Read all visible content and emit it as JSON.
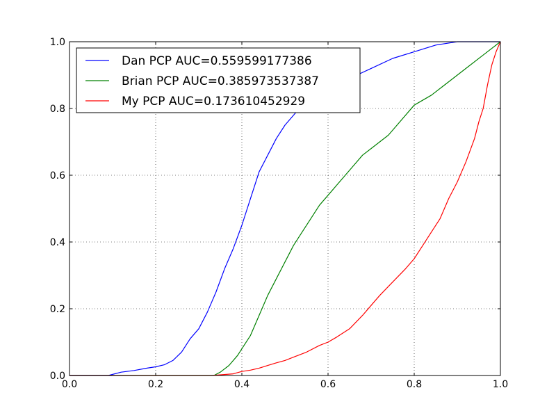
{
  "chart_data": {
    "type": "line",
    "title": "",
    "xlabel": "",
    "ylabel": "",
    "xlim": [
      0.0,
      1.0
    ],
    "ylim": [
      0.0,
      1.0
    ],
    "grid": true,
    "legend_position": "upper left",
    "x_ticks": [
      "0.0",
      "0.2",
      "0.4",
      "0.6",
      "0.8",
      "1.0"
    ],
    "y_ticks": [
      "0.0",
      "0.2",
      "0.4",
      "0.6",
      "0.8",
      "1.0"
    ],
    "series": [
      {
        "name": "Dan PCP AUC=0.559599177386",
        "color": "#0000ff",
        "x": [
          0.0,
          0.05,
          0.09,
          0.12,
          0.15,
          0.18,
          0.2,
          0.22,
          0.24,
          0.26,
          0.28,
          0.3,
          0.32,
          0.34,
          0.36,
          0.38,
          0.4,
          0.42,
          0.44,
          0.46,
          0.48,
          0.5,
          0.52,
          0.54,
          0.56,
          0.6,
          0.65,
          0.7,
          0.75,
          0.8,
          0.85,
          0.9,
          1.0
        ],
        "y": [
          0.0,
          0.0,
          0.0,
          0.01,
          0.015,
          0.022,
          0.026,
          0.032,
          0.045,
          0.07,
          0.11,
          0.14,
          0.19,
          0.25,
          0.32,
          0.38,
          0.45,
          0.53,
          0.61,
          0.66,
          0.71,
          0.75,
          0.78,
          0.81,
          0.83,
          0.86,
          0.89,
          0.92,
          0.95,
          0.97,
          0.99,
          1.0,
          1.0
        ]
      },
      {
        "name": "Brian PCP AUC=0.385973537387",
        "color": "#008000",
        "x": [
          0.0,
          0.3,
          0.335,
          0.35,
          0.37,
          0.39,
          0.4,
          0.42,
          0.44,
          0.46,
          0.48,
          0.5,
          0.52,
          0.54,
          0.56,
          0.58,
          0.6,
          0.62,
          0.64,
          0.66,
          0.68,
          0.7,
          0.72,
          0.74,
          0.76,
          0.8,
          0.84,
          0.88,
          0.92,
          0.96,
          1.0
        ],
        "y": [
          0.0,
          0.0,
          0.0,
          0.01,
          0.03,
          0.06,
          0.08,
          0.12,
          0.18,
          0.24,
          0.29,
          0.34,
          0.39,
          0.43,
          0.47,
          0.51,
          0.54,
          0.57,
          0.6,
          0.63,
          0.66,
          0.68,
          0.7,
          0.72,
          0.75,
          0.81,
          0.84,
          0.88,
          0.92,
          0.96,
          1.0
        ]
      },
      {
        "name": "My PCP AUC=0.173610452929",
        "color": "#ff0000",
        "x": [
          0.0,
          0.33,
          0.38,
          0.4,
          0.42,
          0.44,
          0.46,
          0.48,
          0.5,
          0.52,
          0.55,
          0.58,
          0.6,
          0.62,
          0.65,
          0.68,
          0.7,
          0.72,
          0.75,
          0.78,
          0.8,
          0.82,
          0.84,
          0.86,
          0.88,
          0.9,
          0.92,
          0.94,
          0.95,
          0.96,
          0.97,
          0.98,
          0.99,
          1.0
        ],
        "y": [
          0.0,
          0.0,
          0.005,
          0.012,
          0.016,
          0.022,
          0.03,
          0.038,
          0.045,
          0.055,
          0.07,
          0.09,
          0.1,
          0.115,
          0.14,
          0.18,
          0.21,
          0.24,
          0.28,
          0.32,
          0.35,
          0.39,
          0.43,
          0.47,
          0.53,
          0.58,
          0.64,
          0.71,
          0.76,
          0.8,
          0.87,
          0.93,
          0.97,
          1.0
        ]
      }
    ]
  }
}
